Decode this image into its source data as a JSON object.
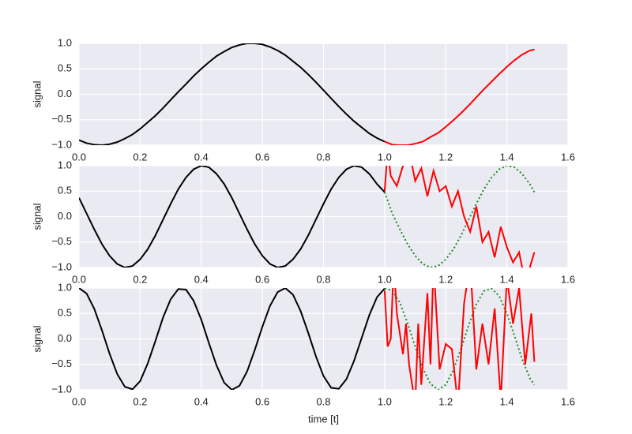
{
  "chart_data": [
    {
      "type": "line",
      "ylabel": "signal",
      "xlim": [
        0,
        1.6
      ],
      "ylim": [
        -1,
        1
      ],
      "grid": true,
      "xticks": [
        {
          "value": 0,
          "label": "0.0"
        },
        {
          "value": 0.2,
          "label": "0.2"
        },
        {
          "value": 0.4,
          "label": "0.4"
        },
        {
          "value": 0.6,
          "label": "0.6"
        },
        {
          "value": 0.8,
          "label": "0.8"
        },
        {
          "value": 1,
          "label": "1.0"
        },
        {
          "value": 1.2,
          "label": "1.2"
        },
        {
          "value": 1.4,
          "label": "1.4"
        },
        {
          "value": 1.6,
          "label": "1.6"
        }
      ],
      "yticks": [
        {
          "value": -1,
          "label": "−1.0"
        },
        {
          "value": -0.5,
          "label": "−0.5"
        },
        {
          "value": 0,
          "label": "0.0"
        },
        {
          "value": 0.5,
          "label": "0.5"
        },
        {
          "value": 1,
          "label": "1.0"
        }
      ],
      "series": [
        {
          "color": "#000000",
          "linestyle": "solid",
          "x": [
            0,
            0.025,
            0.05,
            0.075,
            0.1,
            0.125,
            0.15,
            0.175,
            0.2,
            0.225,
            0.25,
            0.275,
            0.3,
            0.325,
            0.35,
            0.375,
            0.4,
            0.425,
            0.45,
            0.475,
            0.5,
            0.525,
            0.55,
            0.575,
            0.6,
            0.625,
            0.65,
            0.675,
            0.7,
            0.725,
            0.75,
            0.775,
            0.8,
            0.825,
            0.85,
            0.875,
            0.9,
            0.925,
            0.95,
            0.975,
            1.0
          ],
          "values": [
            -0.9,
            -0.96,
            -0.99,
            -1.0,
            -0.98,
            -0.94,
            -0.87,
            -0.79,
            -0.68,
            -0.55,
            -0.42,
            -0.27,
            -0.11,
            0.05,
            0.2,
            0.36,
            0.5,
            0.63,
            0.75,
            0.84,
            0.92,
            0.97,
            1.0,
            1.0,
            0.98,
            0.93,
            0.86,
            0.77,
            0.65,
            0.53,
            0.39,
            0.24,
            0.08,
            -0.08,
            -0.24,
            -0.39,
            -0.53,
            -0.65,
            -0.77,
            -0.86,
            -0.93
          ]
        },
        {
          "color": "#ff0000",
          "linestyle": "solid",
          "x": [
            1.0,
            1.025,
            1.05,
            1.075,
            1.1,
            1.125,
            1.15,
            1.175,
            1.2,
            1.225,
            1.25,
            1.275,
            1.3,
            1.325,
            1.35,
            1.375,
            1.4,
            1.425,
            1.45,
            1.475,
            1.49
          ],
          "values": [
            -0.93,
            -0.99,
            -1.0,
            -1.0,
            -0.97,
            -0.93,
            -0.84,
            -0.76,
            -0.64,
            -0.51,
            -0.37,
            -0.22,
            -0.06,
            0.1,
            0.25,
            0.4,
            0.54,
            0.67,
            0.78,
            0.86,
            0.88
          ]
        }
      ]
    },
    {
      "type": "line",
      "ylabel": "signal",
      "xlim": [
        0,
        1.6
      ],
      "ylim": [
        -1,
        1
      ],
      "grid": true,
      "xticks": [
        {
          "value": 0,
          "label": "0.0"
        },
        {
          "value": 0.2,
          "label": "0.2"
        },
        {
          "value": 0.4,
          "label": "0.4"
        },
        {
          "value": 0.6,
          "label": "0.6"
        },
        {
          "value": 0.8,
          "label": "0.8"
        },
        {
          "value": 1,
          "label": "1.0"
        },
        {
          "value": 1.2,
          "label": "1.2"
        },
        {
          "value": 1.4,
          "label": "1.4"
        },
        {
          "value": 1.6,
          "label": "1.6"
        }
      ],
      "yticks": [
        {
          "value": -1,
          "label": "−1.0"
        },
        {
          "value": -0.5,
          "label": "−0.5"
        },
        {
          "value": 0,
          "label": "0.0"
        },
        {
          "value": 0.5,
          "label": "0.5"
        },
        {
          "value": 1,
          "label": "1.0"
        }
      ],
      "series": [
        {
          "color": "#000000",
          "linestyle": "solid",
          "x": [
            0,
            0.025,
            0.05,
            0.075,
            0.1,
            0.125,
            0.15,
            0.175,
            0.2,
            0.225,
            0.25,
            0.275,
            0.3,
            0.325,
            0.35,
            0.375,
            0.4,
            0.425,
            0.45,
            0.475,
            0.5,
            0.525,
            0.55,
            0.575,
            0.6,
            0.625,
            0.65,
            0.675,
            0.7,
            0.725,
            0.75,
            0.775,
            0.8,
            0.825,
            0.85,
            0.875,
            0.9,
            0.925,
            0.95,
            0.975,
            1.0
          ],
          "values": [
            0.37,
            0.06,
            -0.25,
            -0.54,
            -0.77,
            -0.93,
            -1.0,
            -0.97,
            -0.84,
            -0.64,
            -0.37,
            -0.06,
            0.25,
            0.54,
            0.77,
            0.93,
            1.0,
            0.97,
            0.84,
            0.64,
            0.37,
            0.06,
            -0.25,
            -0.54,
            -0.77,
            -0.93,
            -1.0,
            -0.97,
            -0.84,
            -0.64,
            -0.37,
            -0.06,
            0.25,
            0.54,
            0.77,
            0.93,
            1.0,
            0.97,
            0.84,
            0.64,
            0.48
          ]
        },
        {
          "color": "#1a8a1a",
          "linestyle": "dotted",
          "x": [
            1.0,
            1.025,
            1.05,
            1.075,
            1.1,
            1.125,
            1.15,
            1.175,
            1.2,
            1.225,
            1.25,
            1.275,
            1.3,
            1.325,
            1.35,
            1.375,
            1.4,
            1.425,
            1.45,
            1.475,
            1.49
          ],
          "values": [
            0.48,
            0.06,
            -0.25,
            -0.54,
            -0.77,
            -0.93,
            -1.0,
            -0.97,
            -0.84,
            -0.64,
            -0.37,
            -0.06,
            0.25,
            0.54,
            0.77,
            0.93,
            1.0,
            0.97,
            0.84,
            0.64,
            0.48
          ]
        },
        {
          "color": "#ff0000",
          "linestyle": "solid",
          "x": [
            1.0,
            1.01,
            1.02,
            1.04,
            1.06,
            1.08,
            1.1,
            1.12,
            1.14,
            1.16,
            1.18,
            1.2,
            1.22,
            1.24,
            1.26,
            1.28,
            1.3,
            1.32,
            1.34,
            1.36,
            1.38,
            1.4,
            1.42,
            1.44,
            1.46,
            1.48,
            1.49
          ],
          "values": [
            0.5,
            1.3,
            0.8,
            0.6,
            1.0,
            1.3,
            0.7,
            0.95,
            0.4,
            0.9,
            0.5,
            0.6,
            0.2,
            0.5,
            0.0,
            -0.3,
            0.2,
            -0.5,
            -0.3,
            -0.8,
            -0.2,
            -0.6,
            -0.9,
            -0.7,
            -1.3,
            -0.9,
            -0.7
          ]
        }
      ]
    },
    {
      "type": "line",
      "ylabel": "signal",
      "xlabel": "time [t]",
      "xlim": [
        0,
        1.6
      ],
      "ylim": [
        -1,
        1
      ],
      "grid": true,
      "xticks": [
        {
          "value": 0,
          "label": "0.0"
        },
        {
          "value": 0.2,
          "label": "0.2"
        },
        {
          "value": 0.4,
          "label": "0.4"
        },
        {
          "value": 0.6,
          "label": "0.6"
        },
        {
          "value": 0.8,
          "label": "0.8"
        },
        {
          "value": 1,
          "label": "1.0"
        },
        {
          "value": 1.2,
          "label": "1.2"
        },
        {
          "value": 1.4,
          "label": "1.4"
        },
        {
          "value": 1.6,
          "label": "1.6"
        }
      ],
      "yticks": [
        {
          "value": -1,
          "label": "−1.0"
        },
        {
          "value": -0.5,
          "label": "−0.5"
        },
        {
          "value": 0,
          "label": "0.0"
        },
        {
          "value": 0.5,
          "label": "0.5"
        },
        {
          "value": 1,
          "label": "1.0"
        }
      ],
      "series": [
        {
          "color": "#000000",
          "linestyle": "solid",
          "x": [
            0,
            0.025,
            0.05,
            0.075,
            0.1,
            0.125,
            0.15,
            0.175,
            0.2,
            0.225,
            0.25,
            0.275,
            0.3,
            0.325,
            0.35,
            0.375,
            0.4,
            0.425,
            0.45,
            0.475,
            0.5,
            0.525,
            0.55,
            0.575,
            0.6,
            0.625,
            0.65,
            0.675,
            0.7,
            0.725,
            0.75,
            0.775,
            0.8,
            0.825,
            0.85,
            0.875,
            0.9,
            0.925,
            0.95,
            0.975,
            1.0
          ],
          "values": [
            1.0,
            0.89,
            0.59,
            0.17,
            -0.29,
            -0.69,
            -0.94,
            -0.99,
            -0.83,
            -0.48,
            -0.04,
            0.42,
            0.78,
            0.98,
            0.97,
            0.75,
            0.38,
            -0.08,
            -0.52,
            -0.86,
            -1.0,
            -0.92,
            -0.64,
            -0.22,
            0.24,
            0.65,
            0.92,
            1.0,
            0.87,
            0.55,
            0.12,
            -0.34,
            -0.73,
            -0.96,
            -0.98,
            -0.79,
            -0.43,
            0.02,
            0.47,
            0.82,
            0.99
          ]
        },
        {
          "color": "#1a8a1a",
          "linestyle": "dotted",
          "x": [
            1.0,
            1.025,
            1.05,
            1.075,
            1.1,
            1.125,
            1.15,
            1.175,
            1.2,
            1.225,
            1.25,
            1.275,
            1.3,
            1.325,
            1.35,
            1.375,
            1.4,
            1.425,
            1.45,
            1.475,
            1.49
          ],
          "values": [
            0.99,
            0.95,
            0.71,
            0.31,
            -0.15,
            -0.58,
            -0.88,
            -1.0,
            -0.9,
            -0.61,
            -0.19,
            0.27,
            0.68,
            0.94,
            0.99,
            0.84,
            0.5,
            0.06,
            -0.4,
            -0.77,
            -0.9
          ]
        },
        {
          "color": "#ff0000",
          "linestyle": "solid",
          "x": [
            1.0,
            1.01,
            1.02,
            1.03,
            1.04,
            1.06,
            1.07,
            1.08,
            1.1,
            1.11,
            1.12,
            1.14,
            1.15,
            1.16,
            1.18,
            1.2,
            1.22,
            1.24,
            1.26,
            1.28,
            1.3,
            1.32,
            1.34,
            1.36,
            1.38,
            1.4,
            1.42,
            1.44,
            1.46,
            1.48,
            1.49
          ],
          "values": [
            0.95,
            -0.15,
            0.0,
            1.5,
            0.5,
            -0.3,
            0.3,
            -0.5,
            -1.3,
            0.3,
            -0.9,
            0.9,
            -0.5,
            1.5,
            -0.6,
            -0.1,
            -0.2,
            -1.3,
            0.7,
            1.5,
            -0.6,
            0.3,
            -0.5,
            0.6,
            -1.2,
            1.2,
            0.3,
            1.0,
            -0.5,
            0.5,
            -0.45
          ]
        }
      ]
    }
  ]
}
